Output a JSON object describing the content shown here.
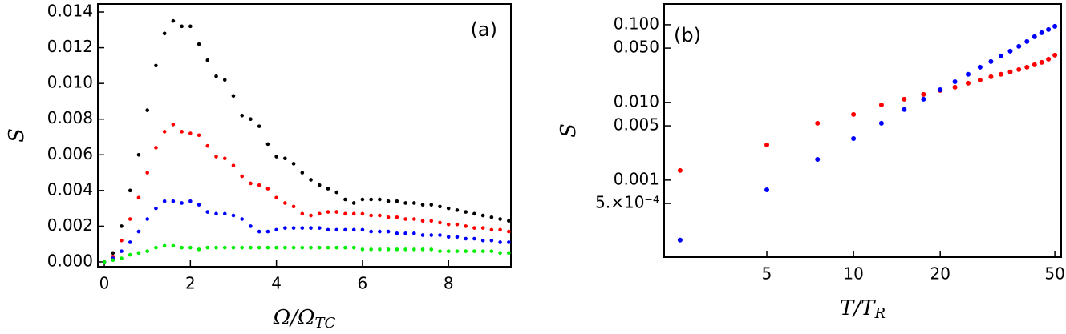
{
  "chart_data": [
    {
      "type": "scatter",
      "panel_label": "(a)",
      "ylabel": "S",
      "xlabel": {
        "text": "Ω/Ω",
        "subscript": "TC"
      },
      "xlim": [
        -0.15,
        9.45
      ],
      "ylim": [
        -0.00027,
        0.01445
      ],
      "xticks": [
        0,
        2,
        4,
        6,
        8
      ],
      "yticks": [
        {
          "value": 0,
          "label": "0.000"
        },
        0.002,
        0.004,
        0.006,
        0.008,
        {
          "value": 0.01,
          "label": "0.010"
        },
        0.012,
        0.014
      ],
      "x": [
        0,
        0.2,
        0.4,
        0.6,
        0.8,
        1.0,
        1.2,
        1.4,
        1.6,
        1.8,
        2.0,
        2.2,
        2.4,
        2.6,
        2.8,
        3.0,
        3.2,
        3.4,
        3.6,
        3.8,
        4.0,
        4.2,
        4.4,
        4.6,
        4.8,
        5.0,
        5.2,
        5.4,
        5.6,
        5.8,
        6.0,
        6.2,
        6.4,
        6.6,
        6.8,
        7.0,
        7.2,
        7.4,
        7.6,
        7.8,
        8.0,
        8.2,
        8.4,
        8.6,
        8.8,
        9.0,
        9.2,
        9.4
      ],
      "series": [
        {
          "color": "#000000",
          "values": [
            0,
            0.0005,
            0.002,
            0.004,
            0.006,
            0.0085,
            0.011,
            0.0128,
            0.0135,
            0.0132,
            0.0132,
            0.0122,
            0.0113,
            0.0104,
            0.0102,
            0.0093,
            0.0082,
            0.008,
            0.0076,
            0.0066,
            0.0059,
            0.0058,
            0.0055,
            0.005,
            0.0046,
            0.0043,
            0.0041,
            0.0039,
            0.0035,
            0.0033,
            0.0035,
            0.0035,
            0.0035,
            0.0034,
            0.0034,
            0.0033,
            0.0033,
            0.0032,
            0.0032,
            0.0031,
            0.003,
            0.0029,
            0.0028,
            0.0027,
            0.0026,
            0.0025,
            0.0024,
            0.0023
          ]
        },
        {
          "color": "#ff0000",
          "values": [
            0,
            0.0003,
            0.0012,
            0.0024,
            0.0036,
            0.005,
            0.0064,
            0.0073,
            0.0077,
            0.0073,
            0.0072,
            0.0071,
            0.0065,
            0.0059,
            0.0058,
            0.0054,
            0.0048,
            0.0044,
            0.0043,
            0.0041,
            0.0036,
            0.0033,
            0.0031,
            0.0027,
            0.0026,
            0.0027,
            0.0028,
            0.0028,
            0.0027,
            0.0027,
            0.0027,
            0.0026,
            0.0026,
            0.0025,
            0.0025,
            0.0024,
            0.0024,
            0.0023,
            0.0023,
            0.0022,
            0.0021,
            0.0021,
            0.002,
            0.0019,
            0.0019,
            0.0018,
            0.0018,
            0.0017
          ]
        },
        {
          "color": "#0000ff",
          "values": [
            0,
            0.0002,
            0.0006,
            0.0011,
            0.0017,
            0.0024,
            0.003,
            0.0034,
            0.0034,
            0.0033,
            0.0034,
            0.0032,
            0.0028,
            0.0027,
            0.0027,
            0.0026,
            0.0024,
            0.002,
            0.0017,
            0.0017,
            0.0018,
            0.0019,
            0.0019,
            0.0019,
            0.0019,
            0.0019,
            0.0018,
            0.0018,
            0.0018,
            0.0018,
            0.0018,
            0.0017,
            0.0017,
            0.0017,
            0.0016,
            0.0016,
            0.0016,
            0.0015,
            0.0015,
            0.0015,
            0.0014,
            0.0014,
            0.0013,
            0.0013,
            0.0012,
            0.0012,
            0.0011,
            0.0011
          ]
        },
        {
          "color": "#00ee00",
          "values": [
            0,
            0.0001,
            0.0002,
            0.0004,
            0.0005,
            0.0006,
            0.0008,
            0.0009,
            0.0009,
            0.0008,
            0.0008,
            0.0007,
            0.0008,
            0.0008,
            0.0008,
            0.0008,
            0.0008,
            0.0008,
            0.0008,
            0.0008,
            0.0008,
            0.0008,
            0.0008,
            0.0008,
            0.0008,
            0.0008,
            0.0008,
            0.0008,
            0.0008,
            0.0008,
            0.0007,
            0.0007,
            0.0007,
            0.0007,
            0.0007,
            0.0007,
            0.0007,
            0.0007,
            0.0007,
            0.0006,
            0.0006,
            0.0006,
            0.0006,
            0.0006,
            0.0006,
            0.0006,
            0.0005,
            0.0005
          ]
        }
      ]
    },
    {
      "type": "scatter",
      "panel_label": "(b)",
      "ylabel": "S",
      "xlabel": {
        "text": "T/T",
        "subscript": "R"
      },
      "xlog": true,
      "ylog": true,
      "xlim": [
        2.2,
        52.6
      ],
      "ylim": [
        0.000102,
        0.185
      ],
      "xticks": [
        5,
        10,
        20,
        50
      ],
      "yticks": [
        {
          "value": 0.1,
          "label": "0.100"
        },
        {
          "value": 0.05,
          "label": "0.050"
        },
        {
          "value": 0.01,
          "label": "0.010"
        },
        0.005,
        0.001,
        {
          "value": 0.0005,
          "label": "5.×10⁻⁴"
        }
      ],
      "x": [
        2.5,
        5,
        7.5,
        10,
        12.5,
        15,
        17.5,
        20,
        22.5,
        25,
        27.5,
        30,
        32.5,
        35,
        37.5,
        40,
        42.5,
        45,
        47.5,
        50
      ],
      "series": [
        {
          "color": "#ff0000",
          "values": [
            0.00133,
            0.00284,
            0.0054,
            0.007,
            0.0093,
            0.011,
            0.0127,
            0.0143,
            0.0157,
            0.0177,
            0.0194,
            0.0214,
            0.023,
            0.0247,
            0.0265,
            0.0284,
            0.0305,
            0.0328,
            0.036,
            0.0406
          ]
        },
        {
          "color": "#0000ff",
          "values": [
            0.000169,
            0.00075,
            0.00185,
            0.00343,
            0.0054,
            0.0081,
            0.011,
            0.0146,
            0.0185,
            0.023,
            0.0284,
            0.0336,
            0.0397,
            0.0457,
            0.0527,
            0.0608,
            0.07,
            0.0789,
            0.0867,
            0.0954
          ]
        }
      ]
    }
  ]
}
